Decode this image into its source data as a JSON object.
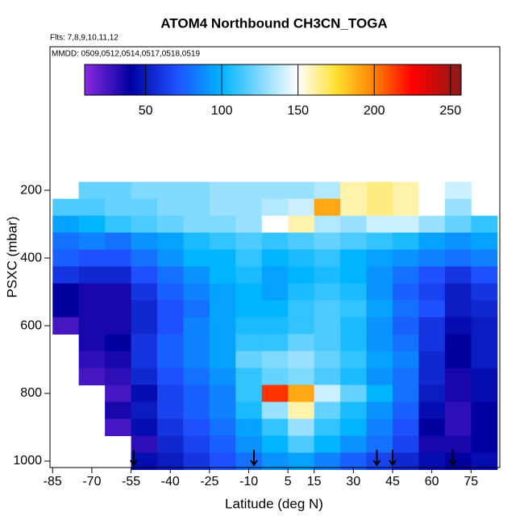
{
  "chart_data": {
    "type": "heatmap",
    "title": "ATOM4 Northbound CH3CN_TOGA",
    "subtitle": [
      "Flts: 7,8,9,10,11,12",
      "MMDD: 0509,0512,0514,0517,0518,0519"
    ],
    "x_label": "Latitude (deg N)",
    "y_label": "PSXC (mbar)",
    "xlim": [
      -86,
      86
    ],
    "xticks": [
      -85,
      -70,
      -55,
      -40,
      -25,
      -10,
      5,
      15,
      30,
      45,
      60,
      75
    ],
    "ylim": [
      1019,
      -224
    ],
    "yticks": [
      200,
      400,
      600,
      800,
      1000
    ],
    "x": [
      -80,
      -70,
      -60,
      -50,
      -40,
      -30,
      -20,
      -10,
      0,
      10,
      20,
      30,
      40,
      50,
      60,
      70,
      80
    ],
    "y": [
      200,
      250,
      300,
      350,
      400,
      450,
      500,
      550,
      600,
      650,
      700,
      750,
      800,
      850,
      900,
      950,
      1000
    ],
    "values": [
      [
        null,
        120,
        120,
        125,
        125,
        125,
        130,
        130,
        130,
        130,
        135,
        160,
        165,
        160,
        150,
        140,
        null
      ],
      [
        115,
        115,
        120,
        120,
        125,
        125,
        130,
        130,
        135,
        140,
        190,
        160,
        165,
        160,
        150,
        130,
        null
      ],
      [
        95,
        100,
        110,
        115,
        120,
        125,
        125,
        130,
        150,
        160,
        135,
        130,
        140,
        140,
        130,
        120,
        110
      ],
      [
        80,
        85,
        80,
        90,
        95,
        105,
        110,
        115,
        110,
        115,
        120,
        115,
        110,
        105,
        95,
        90,
        95
      ],
      [
        75,
        70,
        70,
        80,
        90,
        100,
        100,
        110,
        100,
        105,
        110,
        100,
        95,
        90,
        85,
        80,
        85
      ],
      [
        60,
        55,
        55,
        70,
        80,
        90,
        100,
        105,
        95,
        100,
        105,
        100,
        90,
        80,
        70,
        60,
        70
      ],
      [
        40,
        35,
        35,
        60,
        75,
        85,
        95,
        100,
        95,
        105,
        110,
        105,
        90,
        75,
        65,
        50,
        60
      ],
      [
        40,
        35,
        35,
        55,
        70,
        80,
        95,
        100,
        100,
        110,
        115,
        110,
        95,
        80,
        70,
        50,
        55
      ],
      [
        25,
        35,
        35,
        55,
        70,
        85,
        95,
        105,
        105,
        110,
        115,
        105,
        90,
        75,
        60,
        45,
        50
      ],
      [
        null,
        35,
        40,
        60,
        75,
        85,
        95,
        110,
        110,
        120,
        115,
        105,
        90,
        80,
        60,
        40,
        50
      ],
      [
        null,
        30,
        35,
        60,
        75,
        85,
        95,
        120,
        125,
        130,
        120,
        110,
        95,
        85,
        55,
        40,
        50
      ],
      [
        null,
        25,
        30,
        55,
        70,
        80,
        90,
        110,
        120,
        125,
        115,
        105,
        90,
        80,
        55,
        35,
        45
      ],
      [
        null,
        null,
        25,
        45,
        65,
        75,
        85,
        110,
        215,
        190,
        140,
        120,
        100,
        80,
        50,
        35,
        45
      ],
      [
        null,
        null,
        35,
        50,
        65,
        75,
        85,
        105,
        130,
        160,
        120,
        105,
        90,
        75,
        45,
        30,
        40
      ],
      [
        null,
        null,
        25,
        45,
        60,
        70,
        80,
        95,
        110,
        130,
        110,
        100,
        85,
        70,
        40,
        30,
        40
      ],
      [
        null,
        null,
        null,
        30,
        55,
        65,
        75,
        90,
        100,
        115,
        100,
        90,
        80,
        65,
        35,
        35,
        40
      ],
      [
        null,
        null,
        null,
        45,
        50,
        60,
        70,
        80,
        90,
        95,
        85,
        75,
        65,
        55,
        45,
        40,
        45
      ]
    ],
    "colorscale": [
      [
        10,
        "#8a2be2"
      ],
      [
        40,
        "#0000a0"
      ],
      [
        70,
        "#1e50ff"
      ],
      [
        100,
        "#00b4ff"
      ],
      [
        150,
        "#ffffff"
      ],
      [
        175,
        "#ffe030"
      ],
      [
        200,
        "#ff8000"
      ],
      [
        225,
        "#ff0000"
      ],
      [
        257,
        "#8b1a1a"
      ]
    ],
    "colorbar_lim": [
      10,
      257
    ],
    "colorbar_ticks": [
      50,
      100,
      150,
      200,
      250
    ],
    "arrows": [
      -54,
      -8,
      39,
      45,
      68
    ]
  }
}
